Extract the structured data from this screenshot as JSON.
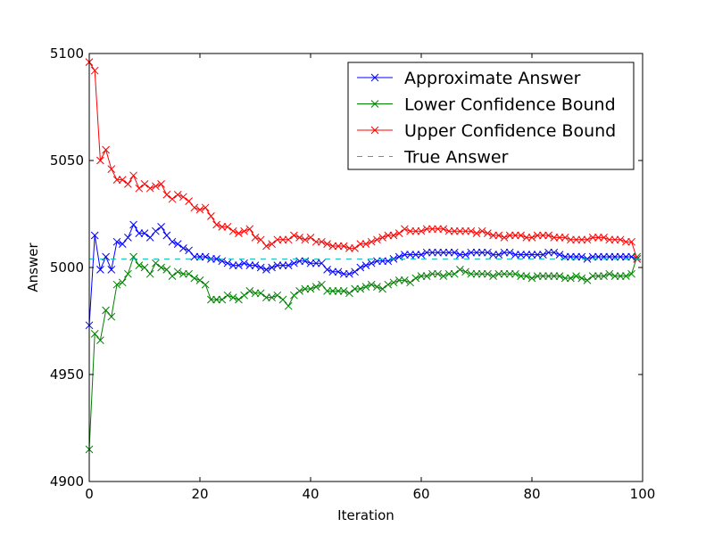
{
  "chart_data": {
    "type": "line",
    "title": "",
    "xlabel": "Iteration",
    "ylabel": "Answer",
    "xlim": [
      0,
      100
    ],
    "ylim": [
      4900,
      5100
    ],
    "xticks": [
      0,
      20,
      40,
      60,
      80,
      100
    ],
    "xtick_labels": [
      "0",
      "20",
      "40",
      "60",
      "80",
      "100"
    ],
    "yticks": [
      4900,
      4950,
      5000,
      5050,
      5100
    ],
    "ytick_labels": [
      "4900",
      "4950",
      "5000",
      "5050",
      "5100"
    ],
    "grid": false,
    "legend_position": "top-right",
    "series": [
      {
        "name": "Approximate Answer",
        "color": "#0000ff",
        "style": "solid",
        "marker": "x",
        "x": [
          0,
          1,
          2,
          3,
          4,
          5,
          6,
          7,
          8,
          9,
          10,
          11,
          12,
          13,
          14,
          15,
          16,
          17,
          18,
          19,
          20,
          21,
          22,
          23,
          24,
          25,
          26,
          27,
          28,
          29,
          30,
          31,
          32,
          33,
          34,
          35,
          36,
          37,
          38,
          39,
          40,
          41,
          42,
          43,
          44,
          45,
          46,
          47,
          48,
          49,
          50,
          51,
          52,
          53,
          54,
          55,
          56,
          57,
          58,
          59,
          60,
          61,
          62,
          63,
          64,
          65,
          66,
          67,
          68,
          69,
          70,
          71,
          72,
          73,
          74,
          75,
          76,
          77,
          78,
          79,
          80,
          81,
          82,
          83,
          84,
          85,
          86,
          87,
          88,
          89,
          90,
          91,
          92,
          93,
          94,
          95,
          96,
          97,
          98,
          99
        ],
        "y": [
          4973,
          5015,
          4999,
          5005,
          4999,
          5012,
          5011,
          5014,
          5020,
          5016,
          5016,
          5014,
          5017,
          5019,
          5015,
          5012,
          5011,
          5009,
          5008,
          5005,
          5005,
          5005,
          5004,
          5004,
          5003,
          5002,
          5001,
          5001,
          5002,
          5001,
          5001,
          5000,
          4999,
          5000,
          5001,
          5001,
          5001,
          5002,
          5003,
          5003,
          5002,
          5002,
          5002,
          4999,
          4998,
          4998,
          4997,
          4997,
          4998,
          5000,
          5001,
          5002,
          5003,
          5003,
          5003,
          5004,
          5005,
          5006,
          5006,
          5006,
          5006,
          5007,
          5007,
          5007,
          5007,
          5007,
          5007,
          5006,
          5006,
          5007,
          5007,
          5007,
          5007,
          5006,
          5006,
          5007,
          5007,
          5006,
          5006,
          5006,
          5006,
          5006,
          5006,
          5007,
          5007,
          5006,
          5005,
          5005,
          5005,
          5005,
          5004,
          5005,
          5005,
          5005,
          5005,
          5005,
          5005,
          5005,
          5005,
          5004
        ]
      },
      {
        "name": "Lower Confidence Bound",
        "color": "#008000",
        "style": "solid",
        "marker": "x",
        "x": [
          0,
          1,
          2,
          3,
          4,
          5,
          6,
          7,
          8,
          9,
          10,
          11,
          12,
          13,
          14,
          15,
          16,
          17,
          18,
          19,
          20,
          21,
          22,
          23,
          24,
          25,
          26,
          27,
          28,
          29,
          30,
          31,
          32,
          33,
          34,
          35,
          36,
          37,
          38,
          39,
          40,
          41,
          42,
          43,
          44,
          45,
          46,
          47,
          48,
          49,
          50,
          51,
          52,
          53,
          54,
          55,
          56,
          57,
          58,
          59,
          60,
          61,
          62,
          63,
          64,
          65,
          66,
          67,
          68,
          69,
          70,
          71,
          72,
          73,
          74,
          75,
          76,
          77,
          78,
          79,
          80,
          81,
          82,
          83,
          84,
          85,
          86,
          87,
          88,
          89,
          90,
          91,
          92,
          93,
          94,
          95,
          96,
          97,
          98,
          99
        ],
        "y": [
          4915,
          4969,
          4966,
          4980,
          4977,
          4992,
          4993,
          4997,
          5005,
          5001,
          5000,
          4997,
          5002,
          5000,
          4999,
          4996,
          4998,
          4997,
          4997,
          4995,
          4994,
          4992,
          4985,
          4985,
          4985,
          4987,
          4986,
          4985,
          4987,
          4989,
          4988,
          4988,
          4986,
          4986,
          4987,
          4985,
          4982,
          4987,
          4989,
          4990,
          4990,
          4991,
          4992,
          4989,
          4989,
          4989,
          4989,
          4988,
          4990,
          4990,
          4991,
          4992,
          4991,
          4990,
          4992,
          4993,
          4994,
          4994,
          4993,
          4995,
          4996,
          4996,
          4997,
          4997,
          4996,
          4997,
          4997,
          4999,
          4998,
          4997,
          4997,
          4997,
          4997,
          4996,
          4997,
          4997,
          4997,
          4997,
          4996,
          4996,
          4995,
          4996,
          4996,
          4996,
          4996,
          4996,
          4995,
          4995,
          4996,
          4995,
          4994,
          4996,
          4996,
          4996,
          4997,
          4996,
          4996,
          4996,
          4997,
          5005
        ]
      },
      {
        "name": "Upper Confidence Bound",
        "color": "#ff0000",
        "style": "solid",
        "marker": "x",
        "x": [
          0,
          1,
          2,
          3,
          4,
          5,
          6,
          7,
          8,
          9,
          10,
          11,
          12,
          13,
          14,
          15,
          16,
          17,
          18,
          19,
          20,
          21,
          22,
          23,
          24,
          25,
          26,
          27,
          28,
          29,
          30,
          31,
          32,
          33,
          34,
          35,
          36,
          37,
          38,
          39,
          40,
          41,
          42,
          43,
          44,
          45,
          46,
          47,
          48,
          49,
          50,
          51,
          52,
          53,
          54,
          55,
          56,
          57,
          58,
          59,
          60,
          61,
          62,
          63,
          64,
          65,
          66,
          67,
          68,
          69,
          70,
          71,
          72,
          73,
          74,
          75,
          76,
          77,
          78,
          79,
          80,
          81,
          82,
          83,
          84,
          85,
          86,
          87,
          88,
          89,
          90,
          91,
          92,
          93,
          94,
          95,
          96,
          97,
          98,
          99
        ],
        "y": [
          5096,
          5092,
          5050,
          5055,
          5046,
          5041,
          5041,
          5039,
          5043,
          5037,
          5039,
          5037,
          5038,
          5039,
          5034,
          5032,
          5034,
          5033,
          5031,
          5028,
          5027,
          5028,
          5024,
          5020,
          5019,
          5019,
          5017,
          5016,
          5017,
          5018,
          5014,
          5013,
          5010,
          5011,
          5013,
          5013,
          5013,
          5015,
          5014,
          5013,
          5014,
          5012,
          5012,
          5011,
          5010,
          5010,
          5010,
          5009,
          5009,
          5011,
          5011,
          5012,
          5013,
          5014,
          5015,
          5015,
          5016,
          5018,
          5017,
          5017,
          5017,
          5018,
          5018,
          5018,
          5018,
          5017,
          5017,
          5017,
          5017,
          5017,
          5016,
          5017,
          5016,
          5015,
          5015,
          5014,
          5015,
          5015,
          5015,
          5014,
          5014,
          5015,
          5015,
          5015,
          5014,
          5014,
          5014,
          5013,
          5013,
          5013,
          5013,
          5014,
          5014,
          5014,
          5013,
          5013,
          5013,
          5012,
          5012,
          5004
        ]
      },
      {
        "name": "True Answer",
        "color": "#00bfbf",
        "style": "dashed",
        "marker": "none",
        "x": [
          0,
          100
        ],
        "y": [
          5004,
          5004
        ]
      }
    ]
  }
}
